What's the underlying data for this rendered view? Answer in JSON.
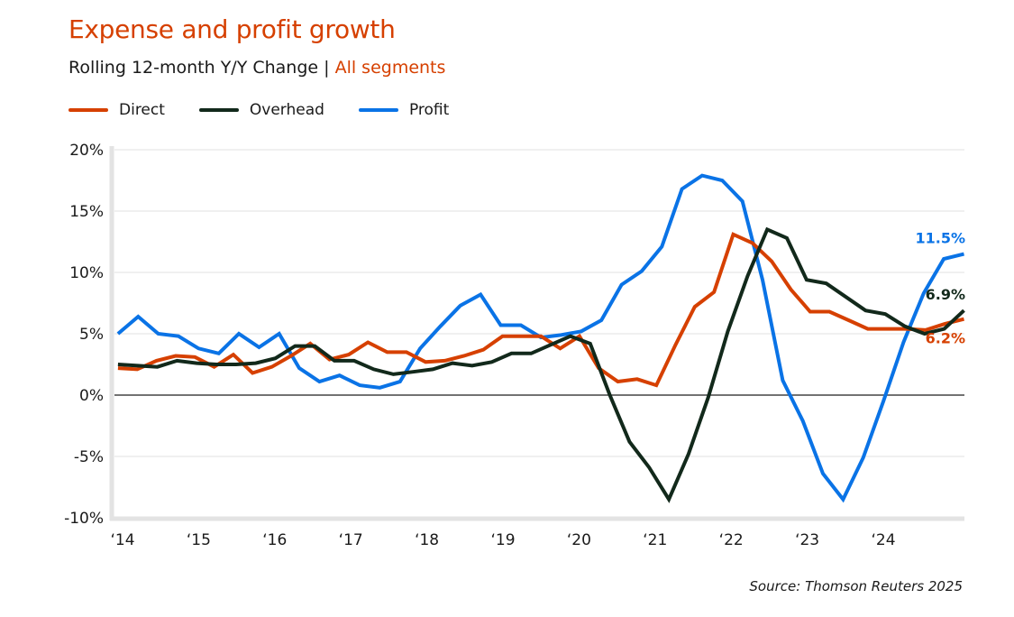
{
  "header": {
    "title": "Expense and profit growth",
    "subtitle_main": "Rolling 12-month Y/Y Change | ",
    "subtitle_accent": "All segments"
  },
  "footer": {
    "source": "Source: Thomson Reuters 2025"
  },
  "colors": {
    "accent": "#d64000",
    "direct": "#d64000",
    "overhead": "#12291b",
    "profit": "#0a73e6",
    "grid": "#e6e6e6",
    "zero_line": "#444444",
    "axis": "#e3e3e3"
  },
  "chart_data": {
    "type": "line",
    "title": "Expense and profit growth",
    "subtitle": "Rolling 12-month Y/Y Change | All segments",
    "xlabel": "",
    "ylabel": "",
    "ylim": [
      -10,
      20
    ],
    "yticks": [
      20,
      15,
      10,
      5,
      0,
      -5,
      -10
    ],
    "ytick_labels": [
      "20%",
      "15%",
      "10%",
      "5%",
      "0%",
      "-5%",
      "-10%"
    ],
    "xlim": [
      2013.94,
      2025.06
    ],
    "xticks": [
      2014,
      2015,
      2016,
      2017,
      2018,
      2019,
      2020,
      2021,
      2022,
      2023,
      2024
    ],
    "xtick_labels": [
      "‘14",
      "‘15",
      "‘16",
      "‘17",
      "‘18",
      "‘19",
      "‘20",
      "‘21",
      "‘22",
      "‘23",
      "‘24"
    ],
    "grid": true,
    "legend_position": "top-left",
    "x_start": 2013.94,
    "x_step": 0.25,
    "series": [
      {
        "name": "Direct",
        "color_key": "direct",
        "end_label": "6.2%",
        "values": [
          2.2,
          2.1,
          2.8,
          3.2,
          3.1,
          2.3,
          3.3,
          1.8,
          2.3,
          3.2,
          4.2,
          2.9,
          3.3,
          4.3,
          3.5,
          3.5,
          2.7,
          2.8,
          3.2,
          3.7,
          4.8,
          4.8,
          4.8,
          3.8,
          4.8,
          2.2,
          1.1,
          1.3,
          0.8,
          4.1,
          7.2,
          8.4,
          13.1,
          12.4,
          10.9,
          8.6,
          6.8,
          6.8,
          6.1,
          5.4,
          5.4,
          5.4,
          5.3,
          5.8,
          6.2
        ]
      },
      {
        "name": "Overhead",
        "color_key": "overhead",
        "end_label": "6.9%",
        "values": [
          2.5,
          2.4,
          2.3,
          2.8,
          2.6,
          2.5,
          2.5,
          2.6,
          3.0,
          4.0,
          4.0,
          2.8,
          2.8,
          2.1,
          1.7,
          1.9,
          2.1,
          2.6,
          2.4,
          2.7,
          3.4,
          3.4,
          4.1,
          4.8,
          4.2,
          0.0,
          -3.8,
          -5.9,
          -8.5,
          -4.8,
          -0.2,
          5.2,
          9.7,
          13.5,
          12.8,
          9.4,
          9.1,
          8.0,
          6.9,
          6.6,
          5.6,
          5.0,
          5.4,
          6.9
        ]
      },
      {
        "name": "Profit",
        "color_key": "profit",
        "end_label": "11.5%",
        "values": [
          5.0,
          6.4,
          5.0,
          4.8,
          3.8,
          3.4,
          5.0,
          3.9,
          5.0,
          2.2,
          1.1,
          1.6,
          0.8,
          0.6,
          1.1,
          3.8,
          5.6,
          7.3,
          8.2,
          5.7,
          5.7,
          4.7,
          4.9,
          5.2,
          6.1,
          9.0,
          10.1,
          12.1,
          16.8,
          17.9,
          17.5,
          15.8,
          9.4,
          1.2,
          -2.1,
          -6.4,
          -8.5,
          -5.1,
          -0.5,
          4.3,
          8.3,
          11.1,
          11.5
        ]
      }
    ],
    "annotations": [
      {
        "text": "11.5%",
        "series": "Profit"
      },
      {
        "text": "6.9%",
        "series": "Overhead"
      },
      {
        "text": "6.2%",
        "series": "Direct"
      }
    ]
  },
  "legend": [
    {
      "label": "Direct",
      "color_key": "direct"
    },
    {
      "label": "Overhead",
      "color_key": "overhead"
    },
    {
      "label": "Profit",
      "color_key": "profit"
    }
  ]
}
